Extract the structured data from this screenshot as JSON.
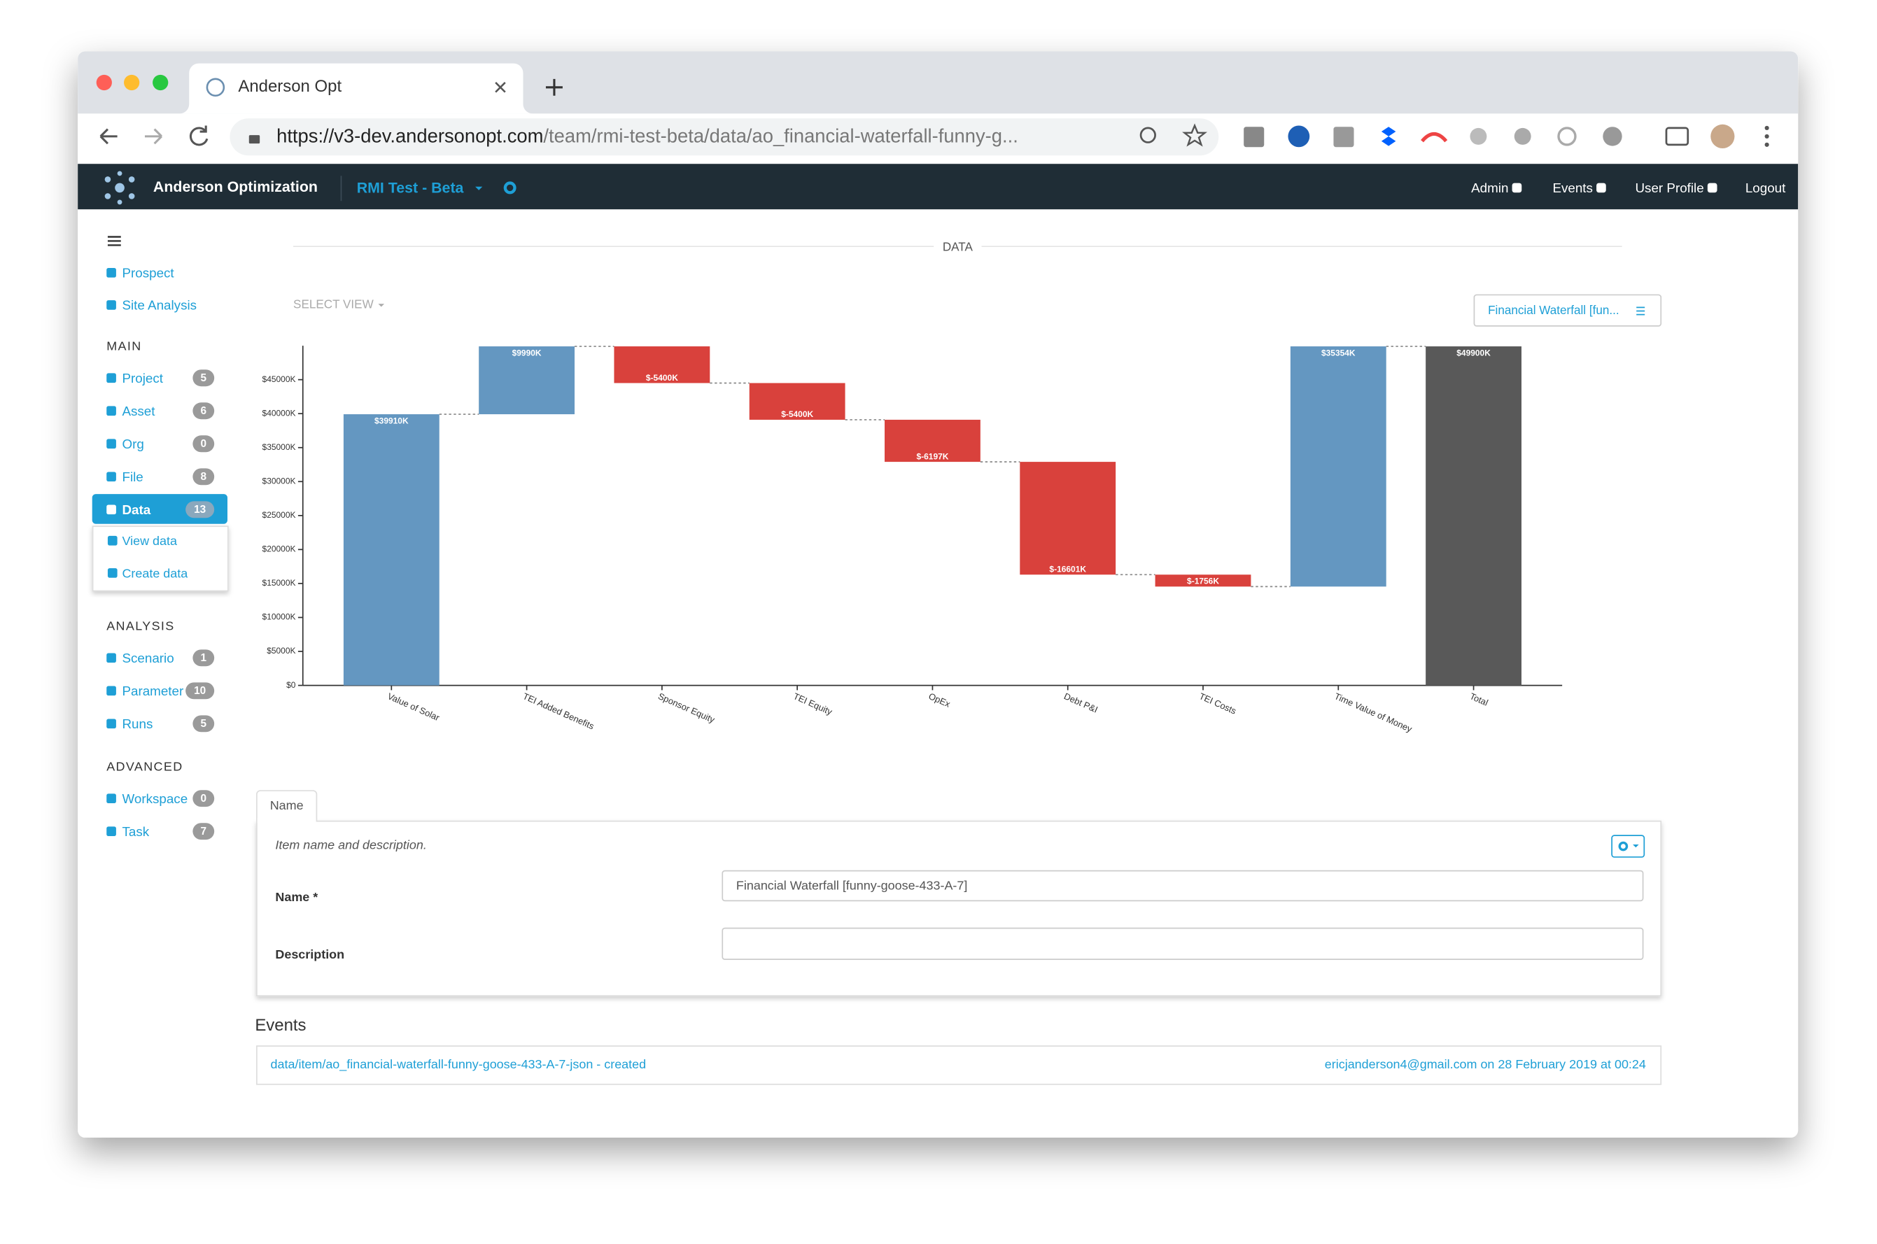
{
  "browser": {
    "tab_title": "Anderson Opt",
    "url_host": "https://v3-dev.andersonopt.com",
    "url_path": "/team/rmi-test-beta/data/ao_financial-waterfall-funny-g..."
  },
  "navbar": {
    "brand": "Anderson Optimization",
    "team": "RMI Test - Beta",
    "links": [
      "Admin",
      "Events",
      "User Profile",
      "Logout"
    ]
  },
  "sidebar": {
    "top": [
      "Prospect",
      "Site Analysis"
    ],
    "sections": [
      {
        "title": "MAIN",
        "items": [
          {
            "label": "Project",
            "count": 5
          },
          {
            "label": "Asset",
            "count": 6
          },
          {
            "label": "Org",
            "count": 0
          },
          {
            "label": "File",
            "count": 8
          },
          {
            "label": "Data",
            "count": 13,
            "active": true,
            "submenu": [
              "View data",
              "Create data"
            ]
          }
        ]
      },
      {
        "title": "ANALYSIS",
        "items": [
          {
            "label": "Scenario",
            "count": 1
          },
          {
            "label": "Parameter",
            "count": 10
          },
          {
            "label": "Runs",
            "count": 5
          }
        ]
      },
      {
        "title": "ADVANCED",
        "items": [
          {
            "label": "Workspace",
            "count": 0
          },
          {
            "label": "Task",
            "count": 7
          }
        ]
      }
    ]
  },
  "page": {
    "heading": "DATA",
    "select_view": "SELECT VIEW",
    "view_button": "Financial Waterfall [fun..."
  },
  "chart_data": {
    "type": "waterfall",
    "categories": [
      "Value of Solar",
      "TEI Added Benefits",
      "Sponsor Equity",
      "TEI Equity",
      "OpEx",
      "Debt P&I",
      "TEI Costs",
      "Time Value of Money",
      "Total"
    ],
    "values": [
      39910,
      9990,
      -5400,
      -5400,
      -6197,
      -16601,
      -1756,
      35354,
      49900
    ],
    "value_labels": [
      "$39910K",
      "$9990K",
      "$-5400K",
      "$-5400K",
      "$-6197K",
      "$-16601K",
      "$-1756K",
      "$35354K",
      "$49900K"
    ],
    "is_total": [
      false,
      false,
      false,
      false,
      false,
      false,
      false,
      false,
      true
    ],
    "colors": {
      "increase": "#6497c1",
      "decrease": "#d9413c",
      "total": "#595959"
    },
    "ylim": [
      0,
      50000
    ],
    "yticks": [
      {
        "value": 0,
        "label": "$0"
      },
      {
        "value": 5000,
        "label": "$5000K"
      },
      {
        "value": 10000,
        "label": "$10000K"
      },
      {
        "value": 15000,
        "label": "$15000K"
      },
      {
        "value": 20000,
        "label": "$20000K"
      },
      {
        "value": 25000,
        "label": "$25000K"
      },
      {
        "value": 30000,
        "label": "$30000K"
      },
      {
        "value": 35000,
        "label": "$35000K"
      },
      {
        "value": 40000,
        "label": "$40000K"
      },
      {
        "value": 45000,
        "label": "$45000K"
      }
    ]
  },
  "form": {
    "tab": "Name",
    "description": "Item name and description.",
    "fields": [
      {
        "label": "Name *",
        "value": "Financial Waterfall [funny-goose-433-A-7]"
      },
      {
        "label": "Description"
      }
    ]
  },
  "events": {
    "title": "Events",
    "items": [
      {
        "text": "data/item/ao_financial-waterfall-funny-goose-433-A-7-json - created",
        "meta": "ericjanderson4@gmail.com on 28 February 2019 at 00:24"
      }
    ]
  }
}
